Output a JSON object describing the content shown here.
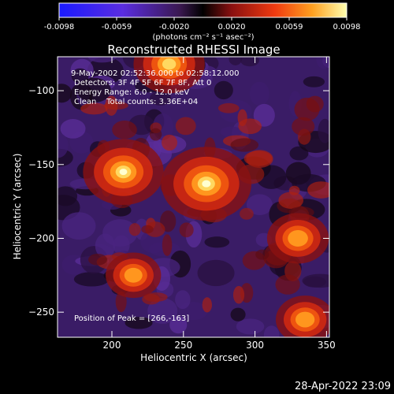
{
  "colorbar": {
    "ticks": [
      "-0.0098",
      "-0.0059",
      "-0.0020",
      "0.0020",
      "0.0059",
      "0.0098"
    ],
    "unit_label": "(photons cm⁻² s⁻¹ asec⁻²)",
    "min": -0.0098,
    "max": 0.0098
  },
  "chart_data": {
    "type": "heatmap",
    "title": "Reconstructed RHESSI Image",
    "xlabel": "Heliocentric X (arcsec)",
    "ylabel": "Heliocentric Y (arcsec)",
    "xlim": [
      162,
      352
    ],
    "ylim": [
      -267,
      -77
    ],
    "x_ticks": [
      200,
      250,
      300,
      350
    ],
    "y_ticks": [
      -100,
      -150,
      -200,
      -250
    ],
    "info_lines": [
      "9-May-2002 02:52:36.000 to 02:58:12.000",
      "Detectors: 3F 4F 5F 6F 7F 8F, Att 0",
      "Energy Range: 6.0 - 12.0 keV",
      "Clean    Total counts: 3.36E+04"
    ],
    "peak_label": "Position of Peak = [266,-163]",
    "sources": [
      {
        "x": 266,
        "y": -163,
        "intensity": 1.0
      },
      {
        "x": 208,
        "y": -155,
        "intensity": 0.85
      },
      {
        "x": 240,
        "y": -82,
        "intensity": 0.7
      },
      {
        "x": 330,
        "y": -200,
        "intensity": 0.55
      },
      {
        "x": 335,
        "y": -255,
        "intensity": 0.5
      },
      {
        "x": 215,
        "y": -225,
        "intensity": 0.45
      }
    ]
  },
  "timestamp": "28-Apr-2022 23:09"
}
